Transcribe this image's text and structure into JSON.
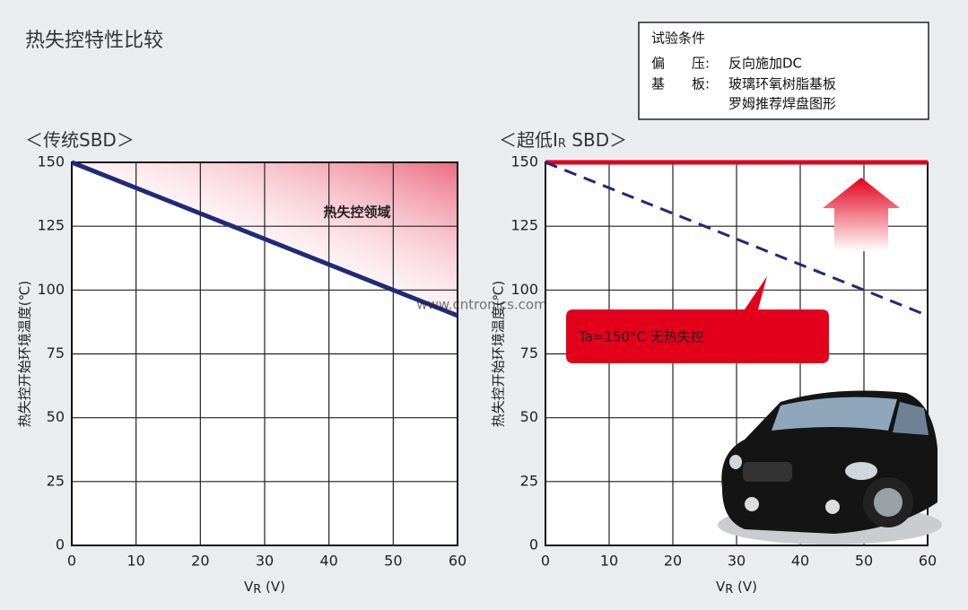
{
  "title": "热失控特性比较",
  "conditions": {
    "title": "试验条件",
    "rows": [
      {
        "label": "偏　　压:",
        "text": "反向施加DC"
      },
      {
        "label": "基　　板:",
        "text": "玻璃环氧树脂基板"
      },
      {
        "text": "罗姆推荐焊盘图形"
      }
    ]
  },
  "watermark": "www.cntronics.com",
  "chart_data": [
    {
      "type": "line",
      "subtitle": [
        "＜传统SBD＞"
      ],
      "y_label": "热失控开始环境温度(℃)",
      "x_label": [
        "V",
        "R",
        " (V)"
      ],
      "annotation": "热失控领域",
      "xlim": [
        0,
        60
      ],
      "ylim": [
        0,
        150
      ],
      "xticks": [
        0,
        10,
        20,
        30,
        40,
        50,
        60
      ],
      "yticks": [
        0,
        25,
        50,
        75,
        100,
        125,
        150
      ],
      "grid": true,
      "series": [
        {
          "color": "#1f2a78",
          "x": [
            0,
            60
          ],
          "values": [
            150,
            90
          ]
        }
      ]
    },
    {
      "type": "line",
      "subtitle": [
        "＜超低I",
        "R",
        " SBD＞"
      ],
      "y_label": "热失控开始环境温度(℃)",
      "x_label": [
        "V",
        "R",
        " (V)"
      ],
      "annotation": "Ta=150°C  无热失控",
      "xlim": [
        0,
        60
      ],
      "ylim": [
        0,
        150
      ],
      "xticks": [
        0,
        10,
        20,
        30,
        40,
        50,
        60
      ],
      "yticks": [
        0,
        25,
        50,
        75,
        100,
        125,
        150
      ],
      "grid": true,
      "series": [
        {
          "color": "#e3001b",
          "x": [
            0,
            60
          ],
          "values": [
            150,
            150
          ]
        },
        {
          "color": "#1f2a78",
          "x": [
            0,
            60
          ],
          "values": [
            150,
            90
          ],
          "dash": true
        }
      ]
    }
  ]
}
